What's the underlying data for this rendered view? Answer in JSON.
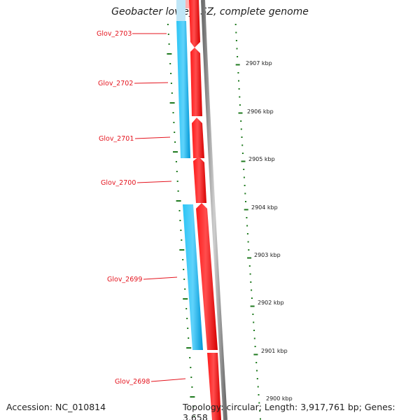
{
  "title": "Geobacter lovleyi SZ, complete genome",
  "footer": {
    "accession": "Accession: NC_010814",
    "summary": "Topology: circular; Length: 3,917,761 bp; Genes: 3,658"
  },
  "genes": [
    {
      "name": "Glov_2703"
    },
    {
      "name": "Glov_2702"
    },
    {
      "name": "Glov_2701"
    },
    {
      "name": "Glov_2700"
    },
    {
      "name": "Glov_2699"
    },
    {
      "name": "Glov_2698"
    }
  ],
  "positions": [
    "2907 kbp",
    "2906 kbp",
    "2905 kbp",
    "2904 kbp",
    "2903 kbp",
    "2902 kbp",
    "2901 kbp",
    "2900 kbp"
  ],
  "colors": {
    "forward_cds": "#ff0000",
    "reverse_cds": "#00a8ec",
    "backbone": "#8c8c8c",
    "gc_content": "#1f7a1f",
    "label": "#e4141e"
  }
}
